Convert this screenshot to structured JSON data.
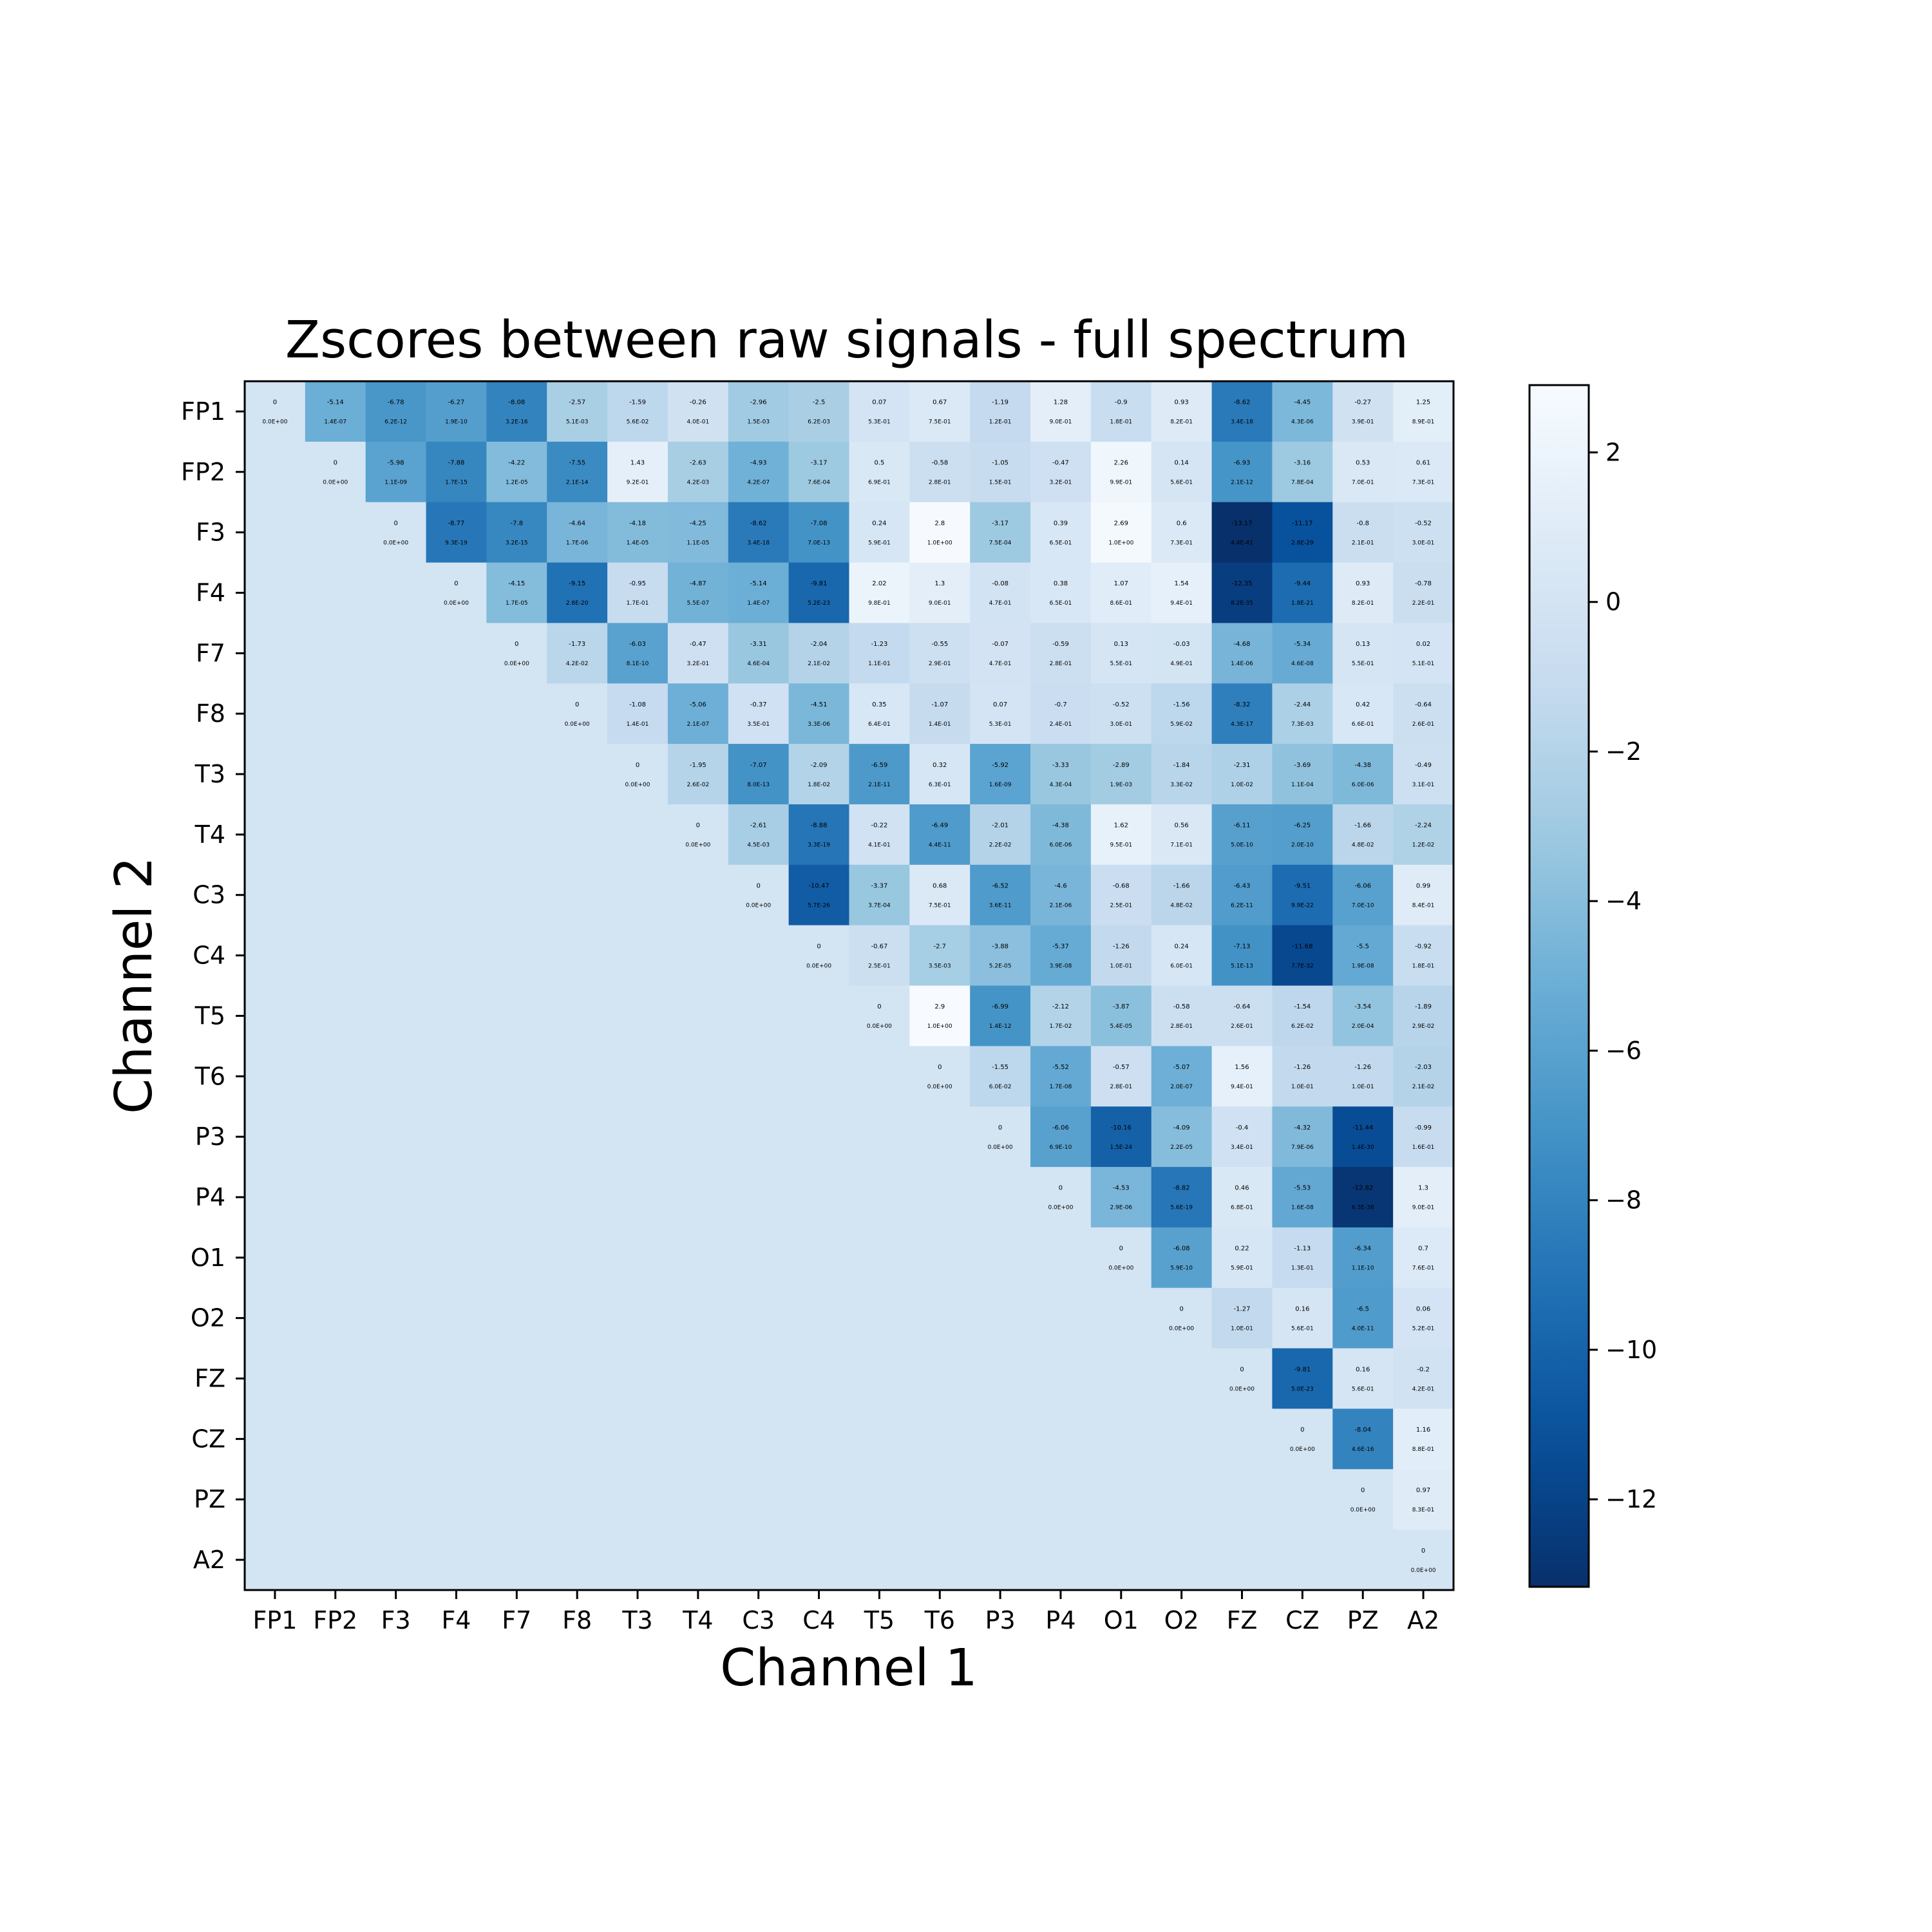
{
  "chart_data": {
    "type": "heatmap",
    "title": "Zscores between raw signals - full spectrum",
    "xlabel": "Channel 1",
    "ylabel": "Channel 2",
    "channels": [
      "FP1",
      "FP2",
      "F3",
      "F4",
      "F7",
      "F8",
      "T3",
      "T4",
      "C3",
      "C4",
      "T5",
      "T6",
      "P3",
      "P4",
      "O1",
      "O2",
      "FZ",
      "CZ",
      "PZ",
      "A2"
    ],
    "colormap": "Blues_r",
    "color_range": [
      -13.17,
      2.9
    ],
    "colorbar_ticks": [
      2,
      0,
      -2,
      -4,
      -6,
      -8,
      -10,
      -12
    ],
    "colorbar_tick_labels": [
      "2",
      "0",
      "−2",
      "−4",
      "−6",
      "−8",
      "−10",
      "−12"
    ],
    "lower_triangle_fill_value": 0,
    "zscores": [
      [
        0.0,
        -5.14,
        -6.78,
        -6.27,
        -8.08,
        -2.57,
        -1.59,
        -0.26,
        -2.96,
        -2.5,
        0.07,
        0.67,
        -1.19,
        1.28,
        -0.9,
        0.93,
        -8.62,
        -4.45,
        -0.27,
        1.25
      ],
      [
        null,
        0.0,
        -5.98,
        -7.88,
        -4.22,
        -7.55,
        1.43,
        -2.63,
        -4.93,
        -3.17,
        0.5,
        -0.58,
        -1.05,
        -0.47,
        2.26,
        0.14,
        -6.93,
        -3.16,
        0.53,
        0.61
      ],
      [
        null,
        null,
        0.0,
        -8.77,
        -7.8,
        -4.64,
        -4.18,
        -4.25,
        -8.62,
        -7.08,
        0.24,
        2.8,
        -3.17,
        0.39,
        2.69,
        0.6,
        -13.17,
        -11.17,
        -0.8,
        -0.52
      ],
      [
        null,
        null,
        null,
        0.0,
        -4.15,
        -9.15,
        -0.95,
        -4.87,
        -5.14,
        -9.81,
        2.02,
        1.3,
        -0.08,
        0.38,
        1.07,
        1.54,
        -12.35,
        -9.44,
        0.93,
        -0.78
      ],
      [
        null,
        null,
        null,
        null,
        0.0,
        -1.73,
        -6.03,
        -0.47,
        -3.31,
        -2.04,
        -1.23,
        -0.55,
        -0.07,
        -0.59,
        0.13,
        -0.03,
        -4.68,
        -5.34,
        0.13,
        0.02
      ],
      [
        null,
        null,
        null,
        null,
        null,
        0.0,
        -1.08,
        -5.06,
        -0.37,
        -4.51,
        0.35,
        -1.07,
        0.07,
        -0.7,
        -0.52,
        -1.56,
        -8.32,
        -2.44,
        0.42,
        -0.64
      ],
      [
        null,
        null,
        null,
        null,
        null,
        null,
        0.0,
        -1.95,
        -7.07,
        -2.09,
        -6.59,
        0.32,
        -5.92,
        -3.33,
        -2.89,
        -1.84,
        -2.31,
        -3.69,
        -4.38,
        -0.49
      ],
      [
        null,
        null,
        null,
        null,
        null,
        null,
        null,
        0.0,
        -2.61,
        -8.88,
        -0.22,
        -6.49,
        -2.01,
        -4.38,
        1.62,
        0.56,
        -6.11,
        -6.25,
        -1.66,
        -2.24
      ],
      [
        null,
        null,
        null,
        null,
        null,
        null,
        null,
        null,
        0.0,
        -10.47,
        -3.37,
        0.68,
        -6.52,
        -4.6,
        -0.68,
        -1.66,
        -6.43,
        -9.51,
        -6.06,
        0.99
      ],
      [
        null,
        null,
        null,
        null,
        null,
        null,
        null,
        null,
        null,
        0.0,
        -0.67,
        -2.7,
        -3.88,
        -5.37,
        -1.26,
        0.24,
        -7.13,
        -11.68,
        -5.5,
        -0.92
      ],
      [
        null,
        null,
        null,
        null,
        null,
        null,
        null,
        null,
        null,
        null,
        0.0,
        2.9,
        -6.99,
        -2.12,
        -3.87,
        -0.58,
        -0.64,
        -1.54,
        -3.54,
        -1.89
      ],
      [
        null,
        null,
        null,
        null,
        null,
        null,
        null,
        null,
        null,
        null,
        null,
        0.0,
        -1.55,
        -5.52,
        -0.57,
        -5.07,
        1.56,
        -1.26,
        -1.26,
        -2.03
      ],
      [
        null,
        null,
        null,
        null,
        null,
        null,
        null,
        null,
        null,
        null,
        null,
        null,
        0.0,
        -6.06,
        -10.16,
        -4.09,
        -0.4,
        -4.32,
        -11.44,
        -0.99
      ],
      [
        null,
        null,
        null,
        null,
        null,
        null,
        null,
        null,
        null,
        null,
        null,
        null,
        null,
        0.0,
        -4.53,
        -8.82,
        0.46,
        -5.53,
        -12.82,
        1.3
      ],
      [
        null,
        null,
        null,
        null,
        null,
        null,
        null,
        null,
        null,
        null,
        null,
        null,
        null,
        null,
        0.0,
        -6.08,
        0.22,
        -1.13,
        -6.34,
        0.7
      ],
      [
        null,
        null,
        null,
        null,
        null,
        null,
        null,
        null,
        null,
        null,
        null,
        null,
        null,
        null,
        null,
        0.0,
        -1.27,
        0.16,
        -6.5,
        0.06
      ],
      [
        null,
        null,
        null,
        null,
        null,
        null,
        null,
        null,
        null,
        null,
        null,
        null,
        null,
        null,
        null,
        null,
        0.0,
        -9.81,
        0.16,
        -0.2
      ],
      [
        null,
        null,
        null,
        null,
        null,
        null,
        null,
        null,
        null,
        null,
        null,
        null,
        null,
        null,
        null,
        null,
        null,
        0.0,
        -8.04,
        1.16
      ],
      [
        null,
        null,
        null,
        null,
        null,
        null,
        null,
        null,
        null,
        null,
        null,
        null,
        null,
        null,
        null,
        null,
        null,
        null,
        0.0,
        0.97
      ],
      [
        null,
        null,
        null,
        null,
        null,
        null,
        null,
        null,
        null,
        null,
        null,
        null,
        null,
        null,
        null,
        null,
        null,
        null,
        null,
        0.0
      ]
    ],
    "pvalues": [
      [
        "0.0E+00",
        "1.4E-07",
        "6.2E-12",
        "1.9E-10",
        "3.2E-16",
        "5.1E-03",
        "5.6E-02",
        "4.0E-01",
        "1.5E-03",
        "6.2E-03",
        "5.3E-01",
        "7.5E-01",
        "1.2E-01",
        "9.0E-01",
        "1.8E-01",
        "8.2E-01",
        "3.4E-18",
        "4.3E-06",
        "3.9E-01",
        "8.9E-01"
      ],
      [
        null,
        "0.0E+00",
        "1.1E-09",
        "1.7E-15",
        "1.2E-05",
        "2.1E-14",
        "9.2E-01",
        "4.2E-03",
        "4.2E-07",
        "7.6E-04",
        "6.9E-01",
        "2.8E-01",
        "1.5E-01",
        "3.2E-01",
        "9.9E-01",
        "5.6E-01",
        "2.1E-12",
        "7.8E-04",
        "7.0E-01",
        "7.3E-01"
      ],
      [
        null,
        null,
        "0.0E+00",
        "9.3E-19",
        "3.2E-15",
        "1.7E-06",
        "1.4E-05",
        "1.1E-05",
        "3.4E-18",
        "7.0E-13",
        "5.9E-01",
        "1.0E+00",
        "7.5E-04",
        "6.5E-01",
        "1.0E+00",
        "7.3E-01",
        "4.4E-41",
        "2.8E-29",
        "2.1E-01",
        "3.0E-01"
      ],
      [
        null,
        null,
        null,
        "0.0E+00",
        "1.7E-05",
        "2.8E-20",
        "1.7E-01",
        "5.5E-07",
        "1.4E-07",
        "5.2E-23",
        "9.8E-01",
        "9.0E-01",
        "4.7E-01",
        "6.5E-01",
        "8.6E-01",
        "9.4E-01",
        "8.2E-35",
        "1.8E-21",
        "8.2E-01",
        "2.2E-01"
      ],
      [
        null,
        null,
        null,
        null,
        "0.0E+00",
        "4.2E-02",
        "8.1E-10",
        "3.2E-01",
        "4.6E-04",
        "2.1E-02",
        "1.1E-01",
        "2.9E-01",
        "4.7E-01",
        "2.8E-01",
        "5.5E-01",
        "4.9E-01",
        "1.4E-06",
        "4.6E-08",
        "5.5E-01",
        "5.1E-01"
      ],
      [
        null,
        null,
        null,
        null,
        null,
        "0.0E+00",
        "1.4E-01",
        "2.1E-07",
        "3.5E-01",
        "3.3E-06",
        "6.4E-01",
        "1.4E-01",
        "5.3E-01",
        "2.4E-01",
        "3.0E-01",
        "5.9E-02",
        "4.3E-17",
        "7.3E-03",
        "6.6E-01",
        "2.6E-01"
      ],
      [
        null,
        null,
        null,
        null,
        null,
        null,
        "0.0E+00",
        "2.6E-02",
        "8.0E-13",
        "1.8E-02",
        "2.1E-11",
        "6.3E-01",
        "1.6E-09",
        "4.3E-04",
        "1.9E-03",
        "3.3E-02",
        "1.0E-02",
        "1.1E-04",
        "6.0E-06",
        "3.1E-01"
      ],
      [
        null,
        null,
        null,
        null,
        null,
        null,
        null,
        "0.0E+00",
        "4.5E-03",
        "3.3E-19",
        "4.1E-01",
        "4.4E-11",
        "2.2E-02",
        "6.0E-06",
        "9.5E-01",
        "7.1E-01",
        "5.0E-10",
        "2.0E-10",
        "4.8E-02",
        "1.2E-02"
      ],
      [
        null,
        null,
        null,
        null,
        null,
        null,
        null,
        null,
        "0.0E+00",
        "5.7E-26",
        "3.7E-04",
        "7.5E-01",
        "3.6E-11",
        "2.1E-06",
        "2.5E-01",
        "4.8E-02",
        "6.2E-11",
        "9.9E-22",
        "7.0E-10",
        "8.4E-01"
      ],
      [
        null,
        null,
        null,
        null,
        null,
        null,
        null,
        null,
        null,
        "0.0E+00",
        "2.5E-01",
        "3.5E-03",
        "5.2E-05",
        "3.9E-08",
        "1.0E-01",
        "6.0E-01",
        "5.1E-13",
        "7.7E-32",
        "1.9E-08",
        "1.8E-01"
      ],
      [
        null,
        null,
        null,
        null,
        null,
        null,
        null,
        null,
        null,
        null,
        "0.0E+00",
        "1.0E+00",
        "1.4E-12",
        "1.7E-02",
        "5.4E-05",
        "2.8E-01",
        "2.6E-01",
        "6.2E-02",
        "2.0E-04",
        "2.9E-02"
      ],
      [
        null,
        null,
        null,
        null,
        null,
        null,
        null,
        null,
        null,
        null,
        null,
        "0.0E+00",
        "6.0E-02",
        "1.7E-08",
        "2.8E-01",
        "2.0E-07",
        "9.4E-01",
        "1.0E-01",
        "1.0E-01",
        "2.1E-02"
      ],
      [
        null,
        null,
        null,
        null,
        null,
        null,
        null,
        null,
        null,
        null,
        null,
        null,
        "0.0E+00",
        "6.9E-10",
        "1.5E-24",
        "2.2E-05",
        "3.4E-01",
        "7.9E-06",
        "1.4E-30",
        "1.6E-01"
      ],
      [
        null,
        null,
        null,
        null,
        null,
        null,
        null,
        null,
        null,
        null,
        null,
        null,
        null,
        "0.0E+00",
        "2.9E-06",
        "5.6E-19",
        "6.8E-01",
        "1.6E-08",
        "6.3E-38",
        "9.0E-01"
      ],
      [
        null,
        null,
        null,
        null,
        null,
        null,
        null,
        null,
        null,
        null,
        null,
        null,
        null,
        null,
        "0.0E+00",
        "5.9E-10",
        "5.9E-01",
        "1.3E-01",
        "1.1E-10",
        "7.6E-01"
      ],
      [
        null,
        null,
        null,
        null,
        null,
        null,
        null,
        null,
        null,
        null,
        null,
        null,
        null,
        null,
        null,
        "0.0E+00",
        "1.0E-01",
        "5.6E-01",
        "4.0E-11",
        "5.2E-01"
      ],
      [
        null,
        null,
        null,
        null,
        null,
        null,
        null,
        null,
        null,
        null,
        null,
        null,
        null,
        null,
        null,
        null,
        "0.0E+00",
        "5.0E-23",
        "5.6E-01",
        "4.2E-01"
      ],
      [
        null,
        null,
        null,
        null,
        null,
        null,
        null,
        null,
        null,
        null,
        null,
        null,
        null,
        null,
        null,
        null,
        null,
        "0.0E+00",
        "4.6E-16",
        "8.8E-01"
      ],
      [
        null,
        null,
        null,
        null,
        null,
        null,
        null,
        null,
        null,
        null,
        null,
        null,
        null,
        null,
        null,
        null,
        null,
        null,
        "0.0E+00",
        "8.3E-01"
      ],
      [
        null,
        null,
        null,
        null,
        null,
        null,
        null,
        null,
        null,
        null,
        null,
        null,
        null,
        null,
        null,
        null,
        null,
        null,
        null,
        "0.0E+00"
      ]
    ]
  }
}
